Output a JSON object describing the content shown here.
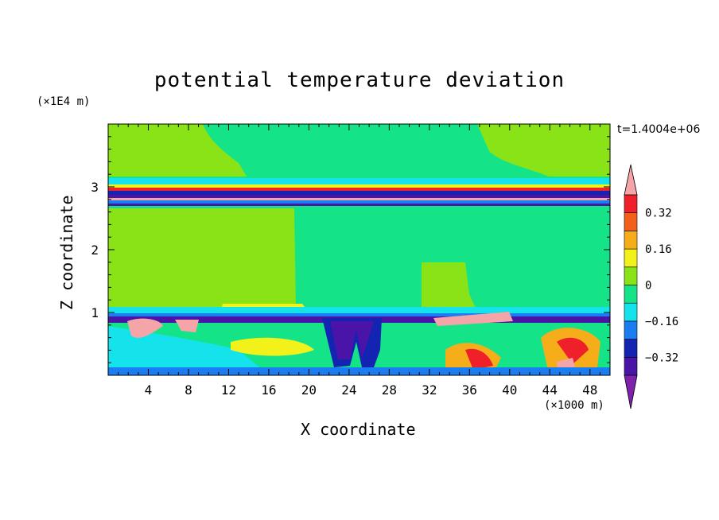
{
  "chart_data": {
    "type": "heatmap",
    "title": "potential temperature deviation",
    "xlabel": "X coordinate",
    "ylabel": "Z coordinate",
    "x_unit": "(×1000 m)",
    "y_unit": "(×1E4 m)",
    "time_label": "t=1.4004e+06",
    "x_ticks": [
      4,
      8,
      12,
      16,
      20,
      24,
      28,
      32,
      36,
      40,
      44,
      48
    ],
    "y_ticks": [
      1,
      2,
      3
    ],
    "xlim": [
      0,
      50
    ],
    "ylim": [
      0,
      4
    ],
    "colorbar": {
      "labels": [
        "0.32",
        "0.16",
        "0",
        "−0.16",
        "−0.32"
      ],
      "label_values": [
        0.32,
        0.16,
        0,
        -0.16,
        -0.32
      ],
      "levels": [
        -0.4,
        -0.32,
        -0.24,
        -0.16,
        -0.08,
        0,
        0.08,
        0.16,
        0.24,
        0.32,
        0.4
      ],
      "colors": [
        "#7e22ad",
        "#4b14a8",
        "#1323b2",
        "#1a7df2",
        "#14e3ec",
        "#14e487",
        "#8ae316",
        "#f2f21a",
        "#f5ae1a",
        "#f2601a",
        "#f0202a",
        "#f5a4a8"
      ]
    },
    "bands": [
      {
        "z_range": [
          3.15,
          4.0
        ],
        "value": 0.04,
        "desc": "upper stratosphere mostly slightly positive with near-zero patches"
      },
      {
        "z_range": [
          2.7,
          3.15
        ],
        "value": -0.35,
        "desc": "thin layered stripes alternating strongly positive and negative"
      },
      {
        "z_range": [
          1.0,
          2.7
        ],
        "value": 0.0,
        "desc": "near-zero region"
      },
      {
        "z_range": [
          0.9,
          1.0
        ],
        "value": -0.3,
        "desc": "strong negative layer at tropopause"
      },
      {
        "z_range": [
          0.0,
          0.9
        ],
        "value": 0.0,
        "desc": "turbulent mixed layer with cells of both signs"
      }
    ]
  }
}
